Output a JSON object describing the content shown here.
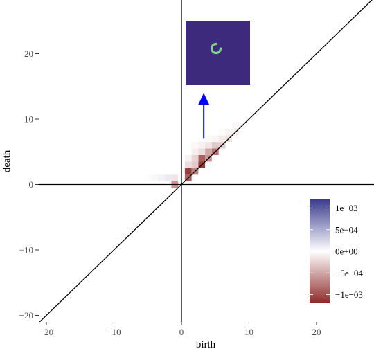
{
  "chart_data": {
    "type": "heatmap",
    "title": "",
    "xlabel": "birth",
    "ylabel": "death",
    "xlim": [
      -21,
      28
    ],
    "ylim": [
      -21,
      25.6
    ],
    "x_ticks": [
      -20,
      -10,
      0,
      10,
      20
    ],
    "x_tick_labels": [
      "−20",
      "−10",
      "0",
      "10",
      "20"
    ],
    "y_ticks": [
      -20,
      -10,
      0,
      10,
      20
    ],
    "y_tick_labels": [
      "−20",
      "−10",
      "0",
      "10",
      "20"
    ],
    "reference_lines": [
      "x = 0",
      "y = 0",
      "y = x"
    ],
    "grid": false,
    "cell_size": 1,
    "cells": [
      {
        "x": -5,
        "y": 1,
        "value": 2e-05
      },
      {
        "x": -4,
        "y": 1,
        "value": 4e-05
      },
      {
        "x": -3,
        "y": 1,
        "value": 8e-05
      },
      {
        "x": -2,
        "y": 1,
        "value": 0.00012
      },
      {
        "x": -1,
        "y": 1,
        "value": -0.00015
      },
      {
        "x": -1,
        "y": 0,
        "value": -0.0006
      },
      {
        "x": 1,
        "y": 1,
        "value": -0.0009
      },
      {
        "x": 1,
        "y": 2,
        "value": -0.0011
      },
      {
        "x": 2,
        "y": 2,
        "value": -0.0007
      },
      {
        "x": 2,
        "y": 3,
        "value": -0.0003
      },
      {
        "x": 1,
        "y": 3,
        "value": -0.0002
      },
      {
        "x": 1,
        "y": 4,
        "value": -8e-05
      },
      {
        "x": 3,
        "y": 3,
        "value": -0.0011
      },
      {
        "x": 3,
        "y": 4,
        "value": -0.0009
      },
      {
        "x": 2,
        "y": 4,
        "value": -0.00025
      },
      {
        "x": 2,
        "y": 5,
        "value": -0.0001
      },
      {
        "x": 4,
        "y": 4,
        "value": -0.0006
      },
      {
        "x": 4,
        "y": 5,
        "value": -0.0005
      },
      {
        "x": 3,
        "y": 5,
        "value": -0.0002
      },
      {
        "x": 3,
        "y": 6,
        "value": -8e-05
      },
      {
        "x": 5,
        "y": 5,
        "value": -0.0008
      },
      {
        "x": 5,
        "y": 6,
        "value": -0.0003
      },
      {
        "x": 4,
        "y": 6,
        "value": -0.00015
      },
      {
        "x": 6,
        "y": 6,
        "value": -0.0003
      },
      {
        "x": 6,
        "y": 7,
        "value": -0.00012
      },
      {
        "x": 5,
        "y": 7,
        "value": -5e-05
      },
      {
        "x": 7,
        "y": 7,
        "value": -0.00015
      },
      {
        "x": 7,
        "y": 8,
        "value": -8e-05
      },
      {
        "x": 8,
        "y": 8,
        "value": -0.0001
      },
      {
        "x": 8,
        "y": 9,
        "value": -5e-05
      },
      {
        "x": 9,
        "y": 9,
        "value": -5e-05
      },
      {
        "x": 2,
        "y": 6,
        "value": -4e-05
      },
      {
        "x": 4,
        "y": 7,
        "value": -4e-05
      },
      {
        "x": 6,
        "y": 8,
        "value": -3e-05
      }
    ],
    "colorbar": {
      "min": -0.0012,
      "max": 0.0012,
      "low_color": "#8e2a2a",
      "mid_color": "#ffffff",
      "high_color": "#3b3b8f",
      "ticks": [
        0.001,
        0.0005,
        0,
        -0.0005,
        -0.001
      ],
      "labels": [
        "1e−03",
        "5e−04",
        "0e+00",
        "−5e−04",
        "−1e−03"
      ]
    },
    "inset": {
      "description_color_bg": "#3d2a7d",
      "ring_color": "#7ed48a",
      "arrow_color": "#0000ff",
      "arrow_from": [
        3.3,
        7
      ],
      "arrow_to": [
        3.3,
        14
      ]
    }
  }
}
